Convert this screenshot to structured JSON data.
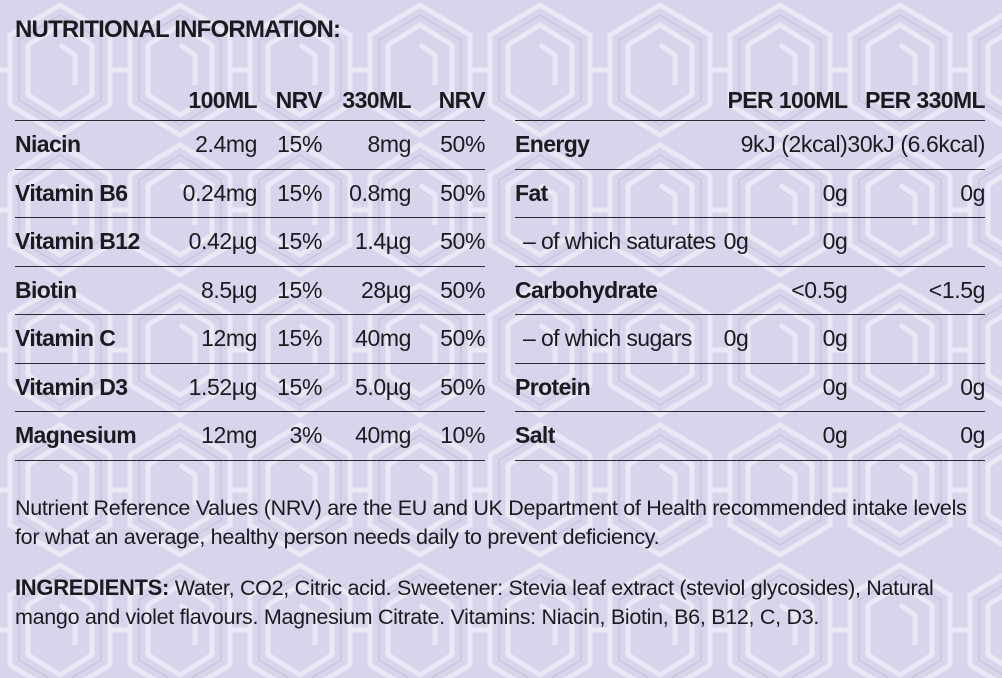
{
  "title": "NUTRITIONAL INFORMATION:",
  "vitamins": {
    "headers": [
      "",
      "100ML",
      "NRV",
      "330ML",
      "NRV"
    ],
    "rows": [
      {
        "name": "Niacin",
        "per100": "2.4mg",
        "nrv100": "15%",
        "per330": "8mg",
        "nrv330": "50%"
      },
      {
        "name": "Vitamin B6",
        "per100": "0.24mg",
        "nrv100": "15%",
        "per330": "0.8mg",
        "nrv330": "50%"
      },
      {
        "name": "Vitamin B12",
        "per100": "0.42µg",
        "nrv100": "15%",
        "per330": "1.4µg",
        "nrv330": "50%"
      },
      {
        "name": "Biotin",
        "per100": "8.5µg",
        "nrv100": "15%",
        "per330": "28µg",
        "nrv330": "50%"
      },
      {
        "name": "Vitamin C",
        "per100": "12mg",
        "nrv100": "15%",
        "per330": "40mg",
        "nrv330": "50%"
      },
      {
        "name": "Vitamin D3",
        "per100": "1.52µg",
        "nrv100": "15%",
        "per330": "5.0µg",
        "nrv330": "50%"
      },
      {
        "name": "Magnesium",
        "per100": "12mg",
        "nrv100": "3%",
        "per330": "40mg",
        "nrv330": "10%"
      }
    ]
  },
  "nutrition": {
    "headers": [
      "",
      "PER 100ML",
      "PER 330ML"
    ],
    "rows": [
      {
        "name": "Energy",
        "per100": "9kJ (2kcal)",
        "per330": "30kJ (6.6kcal)",
        "sub": false
      },
      {
        "name": "Fat",
        "per100": "0g",
        "per330": "0g",
        "sub": false
      },
      {
        "name": "– of which saturates",
        "per100": "0g",
        "per330": "0g",
        "sub": true
      },
      {
        "name": "Carbohydrate",
        "per100": "<0.5g",
        "per330": "<1.5g",
        "sub": false
      },
      {
        "name": "– of which sugars",
        "per100": "0g",
        "per330": "0g",
        "sub": true
      },
      {
        "name": "Protein",
        "per100": "0g",
        "per330": "0g",
        "sub": false
      },
      {
        "name": "Salt",
        "per100": "0g",
        "per330": "0g",
        "sub": false
      }
    ]
  },
  "nrv_note": "Nutrient Reference Values (NRV) are the EU and UK Department of Health recommended intake levels for what an average, healthy person needs daily to prevent deficiency.",
  "ingredients_label": "INGREDIENTS:",
  "ingredients_text": " Water, CO2, Citric acid. Sweetener: Stevia leaf extract (steviol glycosides), Natural mango and violet flavours. Magnesium Citrate. Vitamins: Niacin, Biotin, B6, B12, C, D3.",
  "colors": {
    "background": "#d9d4ec",
    "pattern": "#ebe8f6",
    "text": "#1b1a1f"
  }
}
